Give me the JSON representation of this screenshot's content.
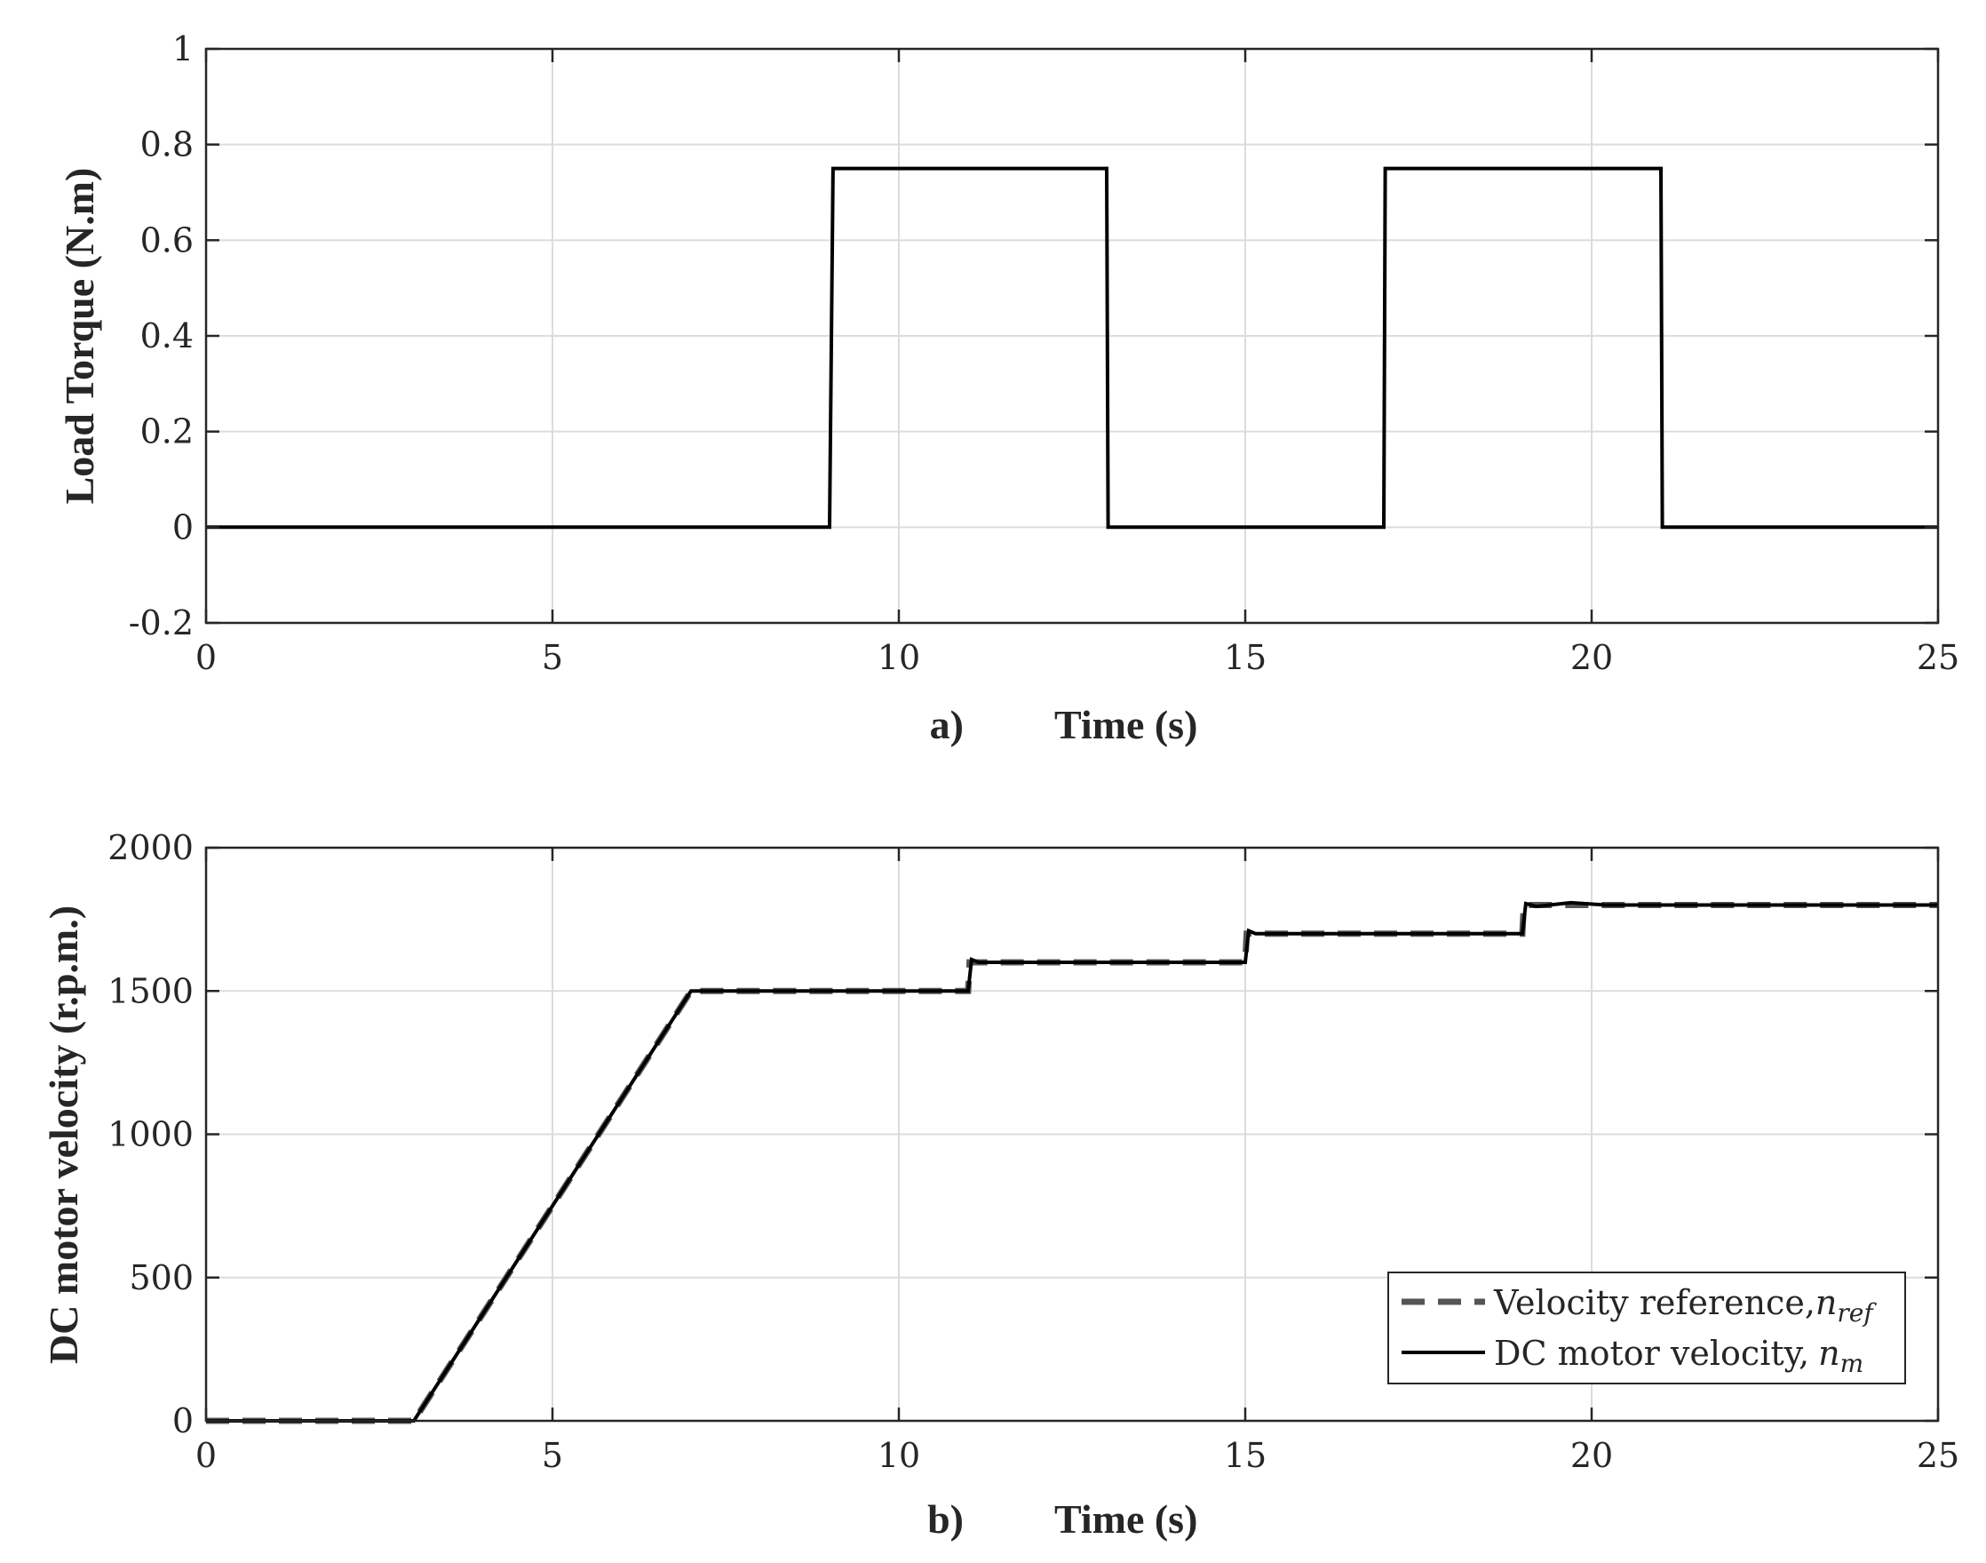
{
  "chart_data": [
    {
      "type": "line",
      "panel_label": "a)",
      "xlabel": "Time (s)",
      "ylabel": "Load Torque (N.m)",
      "xlim": [
        0,
        25
      ],
      "ylim": [
        -0.2,
        1
      ],
      "xticks": [
        0,
        5,
        10,
        15,
        20,
        25
      ],
      "yticks": [
        -0.2,
        0,
        0.2,
        0.4,
        0.6,
        0.8,
        1
      ],
      "xtick_labels": [
        "0",
        "5",
        "10",
        "15",
        "20",
        "25"
      ],
      "ytick_labels": [
        "-0.2",
        "0",
        "0.2",
        "0.4",
        "0.6",
        "0.8",
        "1"
      ],
      "grid": true,
      "series": [
        {
          "style": "solid",
          "color": "#000000",
          "x": [
            0,
            9,
            9.05,
            13,
            13.02,
            17,
            17.02,
            21,
            21.02,
            25
          ],
          "y": [
            0,
            0,
            0.75,
            0.75,
            0,
            0,
            0.75,
            0.75,
            0,
            0
          ]
        }
      ]
    },
    {
      "type": "line",
      "panel_label": "b)",
      "xlabel": "Time (s)",
      "ylabel": "DC motor velocity (r.p.m.)",
      "xlim": [
        0,
        25
      ],
      "ylim": [
        0,
        2000
      ],
      "xticks": [
        0,
        5,
        10,
        15,
        20,
        25
      ],
      "yticks": [
        0,
        500,
        1000,
        1500,
        2000
      ],
      "xtick_labels": [
        "0",
        "5",
        "10",
        "15",
        "20",
        "25"
      ],
      "ytick_labels": [
        "0",
        "500",
        "1000",
        "1500",
        "2000"
      ],
      "grid": true,
      "legend_position": "bottom-right",
      "series": [
        {
          "name": "Velocity reference,",
          "name_math": "n",
          "name_sub": "ref",
          "style": "dashed",
          "color": "#555555",
          "x": [
            0,
            3,
            7,
            11,
            11.02,
            15,
            15.02,
            19,
            19.02,
            25
          ],
          "y": [
            0,
            0,
            1500,
            1500,
            1600,
            1600,
            1700,
            1700,
            1800,
            1800
          ]
        },
        {
          "name": "DC motor velocity,",
          "name_math": "n",
          "name_sub": "m",
          "style": "solid",
          "color": "#000000",
          "x": [
            0,
            3,
            7,
            11,
            11.05,
            11.15,
            15,
            15.05,
            15.15,
            19,
            19.05,
            19.2,
            19.7,
            20.2,
            25
          ],
          "y": [
            0,
            0,
            1500,
            1500,
            1610,
            1600,
            1600,
            1710,
            1700,
            1700,
            1805,
            1795,
            1808,
            1800,
            1800
          ]
        }
      ]
    }
  ]
}
